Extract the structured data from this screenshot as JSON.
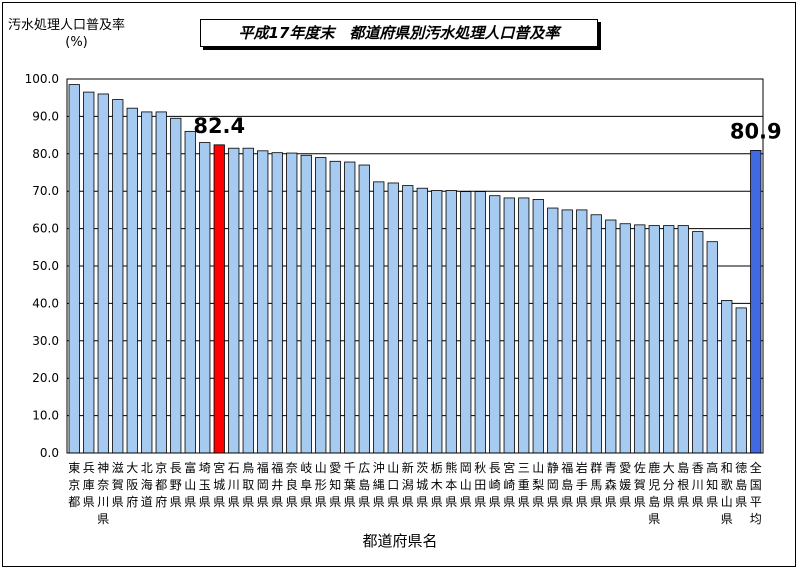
{
  "chart_data": {
    "type": "bar",
    "title": "平成17年度末　都道府県別汚水処理人口普及率",
    "ylabel": "汚水処理人口普及率",
    "yunit": "(%)",
    "xlabel": "都道府県名",
    "ylim": [
      0,
      100
    ],
    "yticks": [
      "0.0",
      "10.0",
      "20.0",
      "30.0",
      "40.0",
      "50.0",
      "60.0",
      "70.0",
      "80.0",
      "90.0",
      "100.0"
    ],
    "grid": true,
    "categories": [
      "東京都",
      "兵庫県",
      "神奈川県",
      "滋賀県",
      "大阪府",
      "北海道",
      "京都府",
      "長野県",
      "富山県",
      "埼玉県",
      "宮城県",
      "石川県",
      "鳥取県",
      "福岡県",
      "福井県",
      "奈良県",
      "岐阜県",
      "山形県",
      "愛知県",
      "千葉県",
      "広島県",
      "沖縄県",
      "山口県",
      "新潟県",
      "茨城県",
      "栃木県",
      "熊本県",
      "岡山県",
      "秋田県",
      "長崎県",
      "宮崎県",
      "三重県",
      "山梨県",
      "静岡県",
      "福島県",
      "岩手県",
      "群馬県",
      "青森県",
      "愛媛県",
      "佐賀県",
      "鹿児島県",
      "大分県",
      "島根県",
      "香川県",
      "高知県",
      "和歌山県",
      "徳島県",
      "全国平均"
    ],
    "values": [
      98.5,
      96.5,
      96.0,
      94.5,
      92.2,
      91.2,
      91.2,
      89.5,
      86.0,
      83.0,
      82.4,
      81.5,
      81.5,
      80.8,
      80.3,
      80.2,
      79.6,
      79.0,
      78.0,
      77.8,
      77.0,
      72.5,
      72.2,
      71.5,
      70.8,
      70.2,
      70.2,
      69.9,
      69.9,
      68.8,
      68.2,
      68.2,
      67.8,
      65.5,
      65.0,
      65.0,
      63.7,
      62.3,
      61.3,
      61.0,
      60.8,
      60.8,
      60.8,
      59.2,
      56.5,
      40.8,
      38.8,
      80.9
    ],
    "highlights": [
      {
        "category": "宮城県",
        "label": "82.4",
        "color": "#ff0000"
      },
      {
        "category": "全国平均",
        "label": "80.9",
        "color": "#4169e1"
      }
    ],
    "bar_color": "#a6caf0"
  }
}
